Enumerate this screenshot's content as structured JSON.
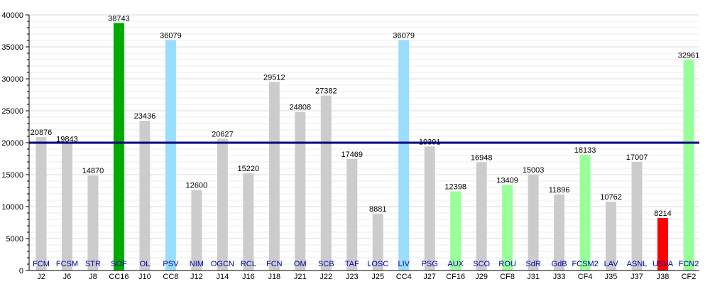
{
  "chart_data": {
    "type": "bar",
    "title": "",
    "xlabel": "",
    "ylabel": "",
    "ylim": [
      0,
      40000
    ],
    "yticks": [
      0,
      5000,
      10000,
      15000,
      20000,
      25000,
      30000,
      35000,
      40000
    ],
    "grid": true,
    "reference_line": 20000,
    "colors": {
      "default": "#cccccc",
      "dark_green": "#00aa00",
      "light_blue": "#99ddff",
      "light_green": "#99ff99",
      "red": "#ff0000",
      "reference": "#000080",
      "inner_label": "#0000aa"
    },
    "categories": [
      "J2",
      "J6",
      "J8",
      "CC16",
      "J10",
      "CC8",
      "J12",
      "J14",
      "J16",
      "J18",
      "J21",
      "J22",
      "J23",
      "J25",
      "CC4",
      "J27",
      "CF16",
      "J29",
      "CF8",
      "J31",
      "J33",
      "CF4",
      "J35",
      "J37",
      "J38",
      "CF2"
    ],
    "inner_labels": [
      "FCM",
      "FCSM",
      "STR",
      "SOF",
      "OL",
      "PSV",
      "NIM",
      "OGCN",
      "RCL",
      "FCN",
      "OM",
      "SCB",
      "TAF",
      "LOSC",
      "LIV",
      "PSG",
      "AUX",
      "SCO",
      "ROU",
      "SdR",
      "GdB",
      "FCSM2",
      "LAV",
      "ASNL",
      "USVA",
      "FCN2"
    ],
    "values": [
      20876,
      19843,
      14870,
      38743,
      23436,
      36079,
      12600,
      20627,
      15220,
      29512,
      24808,
      27382,
      17469,
      8881,
      36079,
      19391,
      12398,
      16948,
      13409,
      15003,
      11896,
      18133,
      10762,
      17007,
      8214,
      32961
    ],
    "bar_colors": [
      "default",
      "default",
      "default",
      "dark_green",
      "default",
      "light_blue",
      "default",
      "default",
      "default",
      "default",
      "default",
      "default",
      "default",
      "default",
      "light_blue",
      "default",
      "light_green",
      "default",
      "light_green",
      "default",
      "default",
      "light_green",
      "default",
      "default",
      "red",
      "light_green"
    ]
  }
}
